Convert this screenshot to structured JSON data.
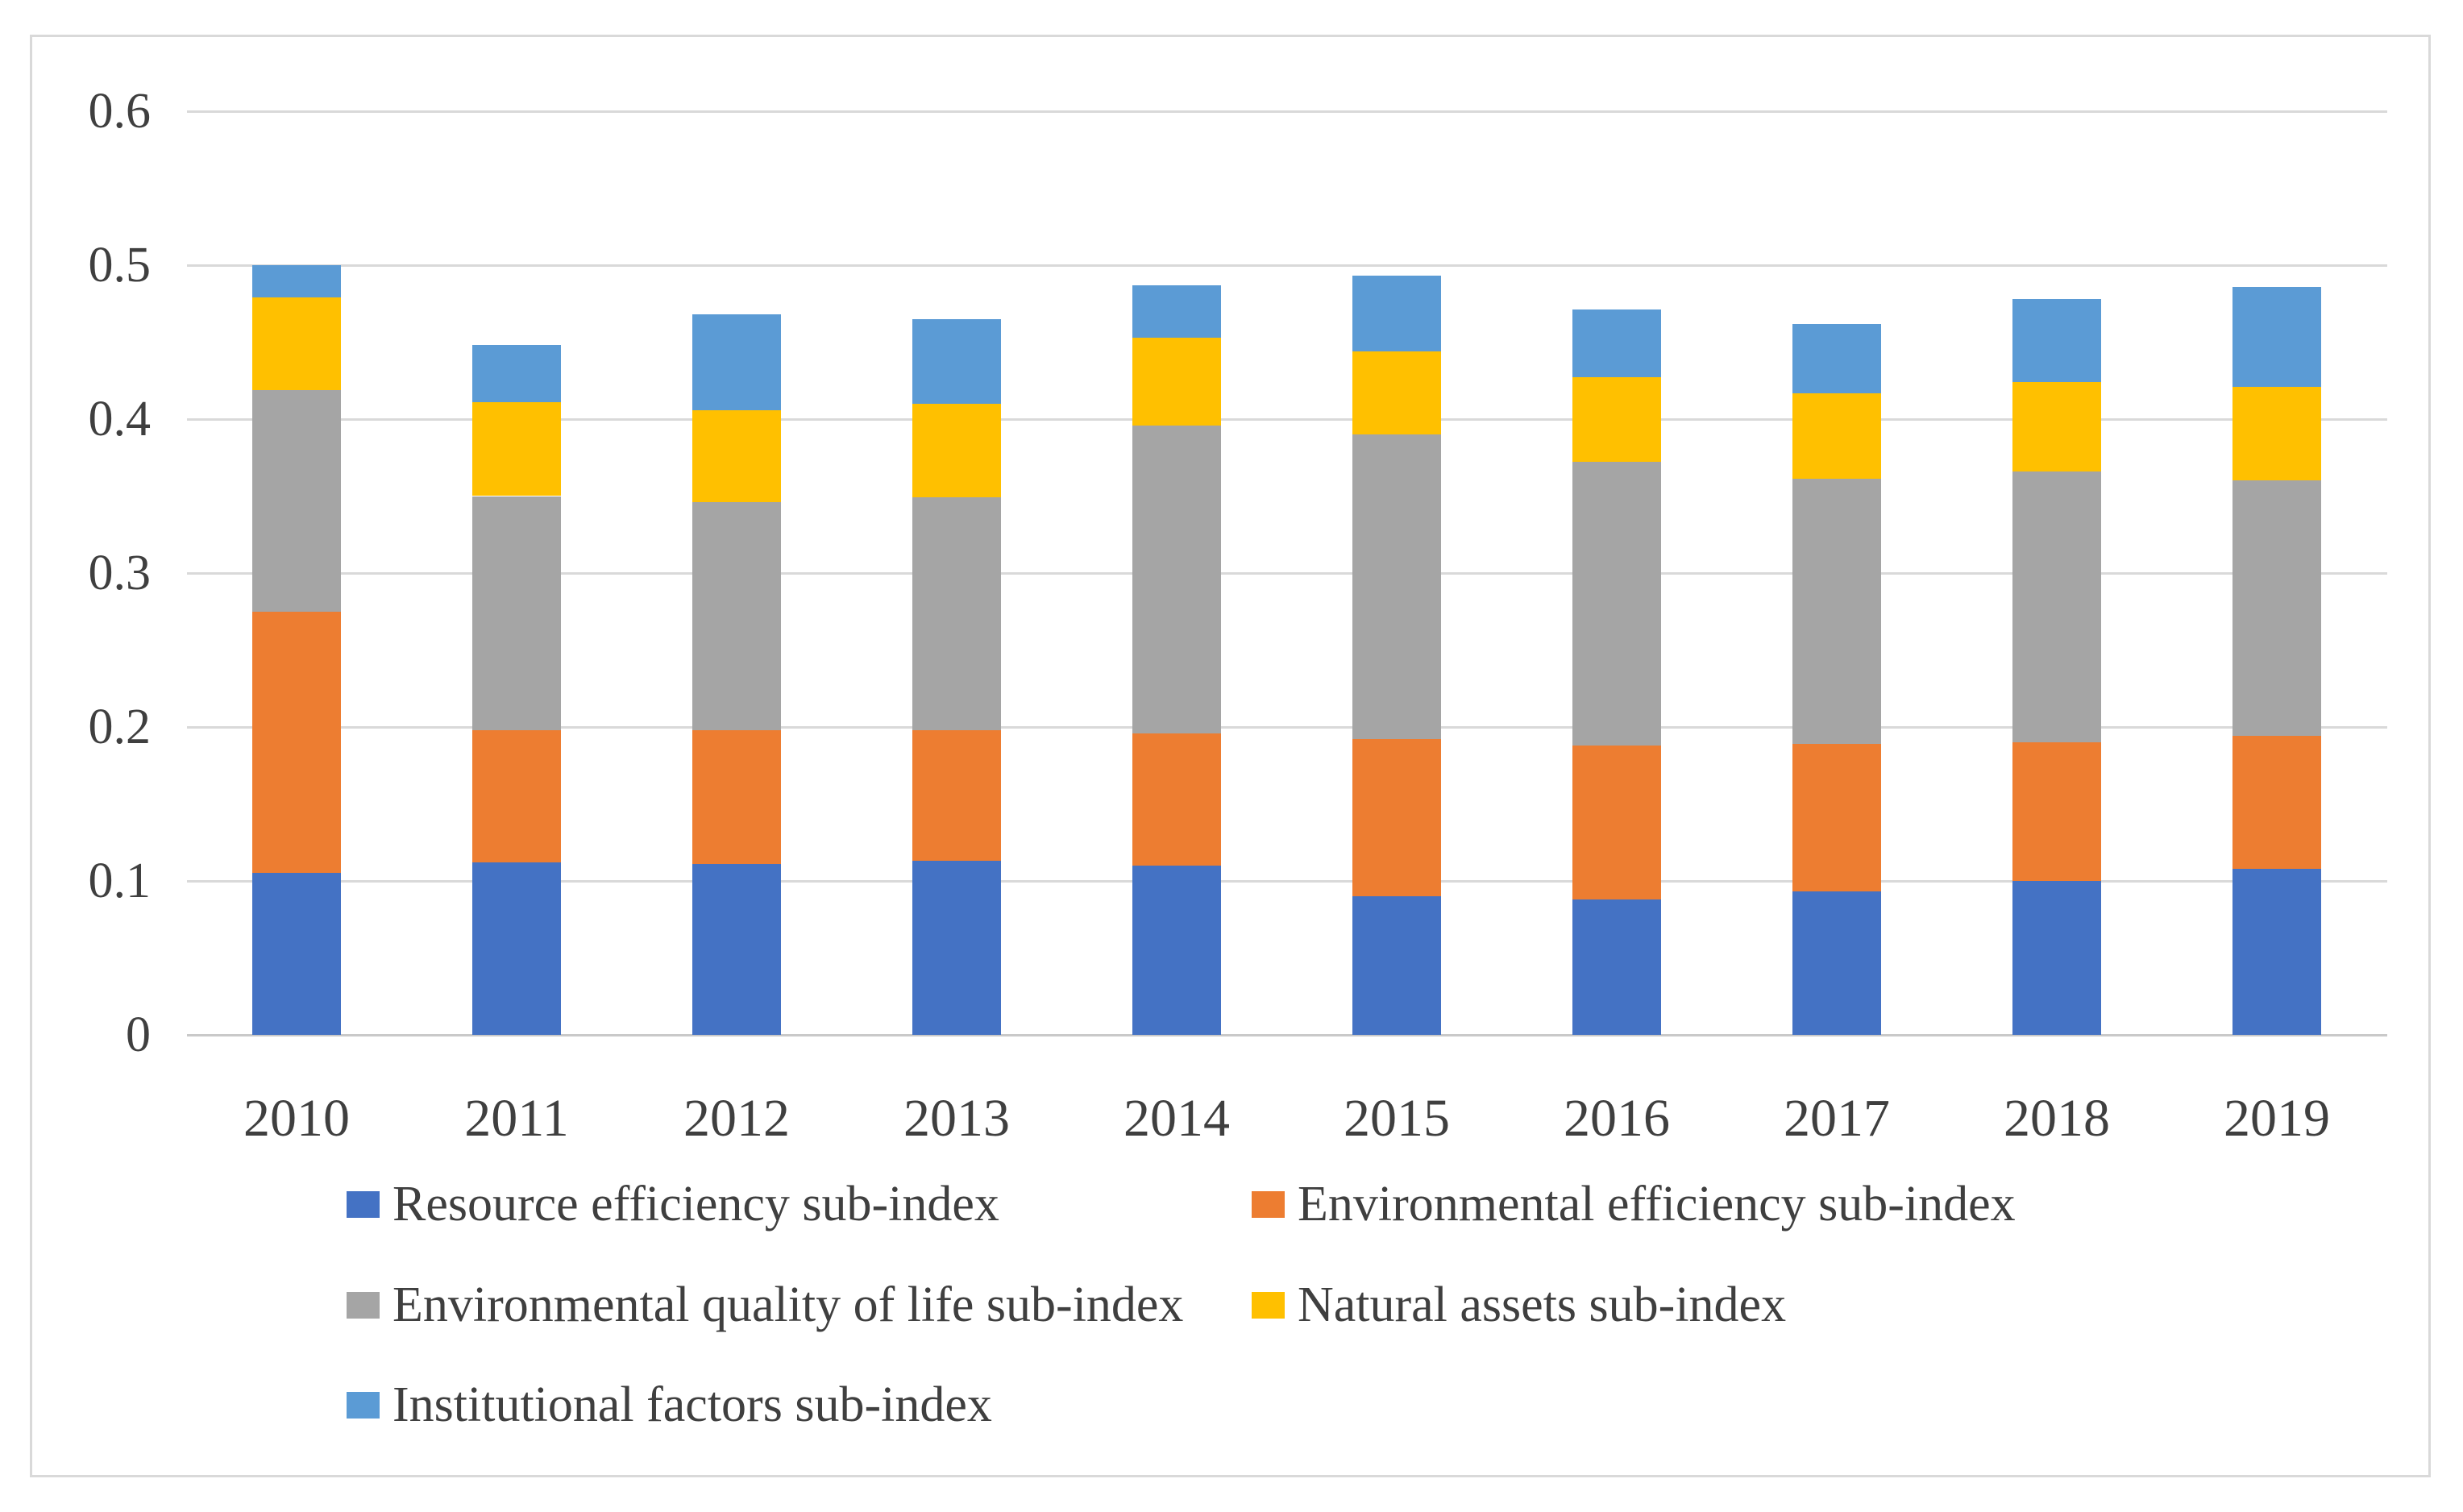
{
  "chart_data": {
    "type": "bar",
    "stacked": true,
    "title": "",
    "xlabel": "",
    "ylabel": "",
    "categories": [
      "2010",
      "2011",
      "2012",
      "2013",
      "2014",
      "2015",
      "2016",
      "2017",
      "2018",
      "2019"
    ],
    "series": [
      {
        "name": "Resource efficiency sub-index",
        "color": "#4472C4",
        "values": [
          0.105,
          0.112,
          0.111,
          0.113,
          0.11,
          0.09,
          0.088,
          0.093,
          0.1,
          0.108
        ]
      },
      {
        "name": "Environmental efficiency sub-index",
        "color": "#ED7D31",
        "values": [
          0.17,
          0.086,
          0.087,
          0.085,
          0.086,
          0.102,
          0.1,
          0.096,
          0.09,
          0.086
        ]
      },
      {
        "name": "Environmental quality of life sub-index",
        "color": "#A5A5A5",
        "values": [
          0.144,
          0.152,
          0.148,
          0.151,
          0.2,
          0.198,
          0.184,
          0.172,
          0.176,
          0.166
        ]
      },
      {
        "name": "Natural assets sub-index",
        "color": "#FFC000",
        "values": [
          0.06,
          0.061,
          0.06,
          0.061,
          0.057,
          0.054,
          0.055,
          0.056,
          0.058,
          0.061
        ]
      },
      {
        "name": "Institutional factors sub-index",
        "color": "#5B9BD5",
        "values": [
          0.021,
          0.037,
          0.062,
          0.055,
          0.034,
          0.049,
          0.044,
          0.045,
          0.054,
          0.065
        ]
      }
    ],
    "totals": [
      0.5,
      0.448,
      0.468,
      0.465,
      0.487,
      0.493,
      0.471,
      0.462,
      0.478,
      0.486
    ],
    "ylim": [
      0,
      0.6
    ],
    "ytick_values": [
      0,
      0.1,
      0.2,
      0.3,
      0.4,
      0.5,
      0.6
    ],
    "ytick_labels": [
      "0",
      "0.1",
      "0.2",
      "0.3",
      "0.4",
      "0.5",
      "0.6"
    ],
    "grid": true,
    "legend_position": "bottom"
  },
  "colors": {
    "gridline": "#D9D9D9",
    "axis_line": "#C9C9C9",
    "frame_border": "#D9D9D9",
    "tick_text": "#3F3F3F",
    "legend_text": "#3F3F3F",
    "background": "#FFFFFF"
  }
}
